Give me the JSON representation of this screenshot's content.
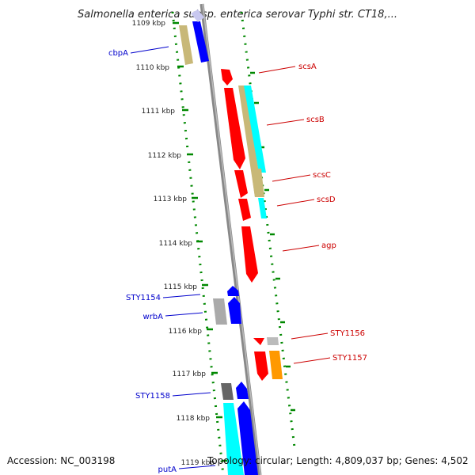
{
  "title": "Salmonella enterica subsp. enterica serovar Typhi str. CT18,...",
  "footer": {
    "accession": "Accession: NC_003198",
    "topology": "Topology: circular; Length: 4,809,037 bp; Genes: 4,502"
  },
  "ticks": [
    "1109 kbp",
    "1110 kbp",
    "1111 kbp",
    "1112 kbp",
    "1113 kbp",
    "1114 kbp",
    "1115 kbp",
    "1116 kbp",
    "1117 kbp",
    "1118 kbp",
    "1119 kbp"
  ],
  "gene_labels_left": [
    "cbpA",
    "STY1154",
    "wrbA",
    "STY1158",
    "putA"
  ],
  "gene_labels_right": [
    "scsA",
    "scsB",
    "scsC",
    "scsD",
    "agp",
    "STY1156",
    "STY1157"
  ],
  "colors": {
    "forward": "#ff0000",
    "reverse": "#0000ff",
    "khaki": "#c8b878",
    "cyan": "#00ffff",
    "grey": "#aaaaaa",
    "dark_grey": "#666666",
    "orange": "#ff9900",
    "backbone": "#888888",
    "dots": "#008800"
  }
}
